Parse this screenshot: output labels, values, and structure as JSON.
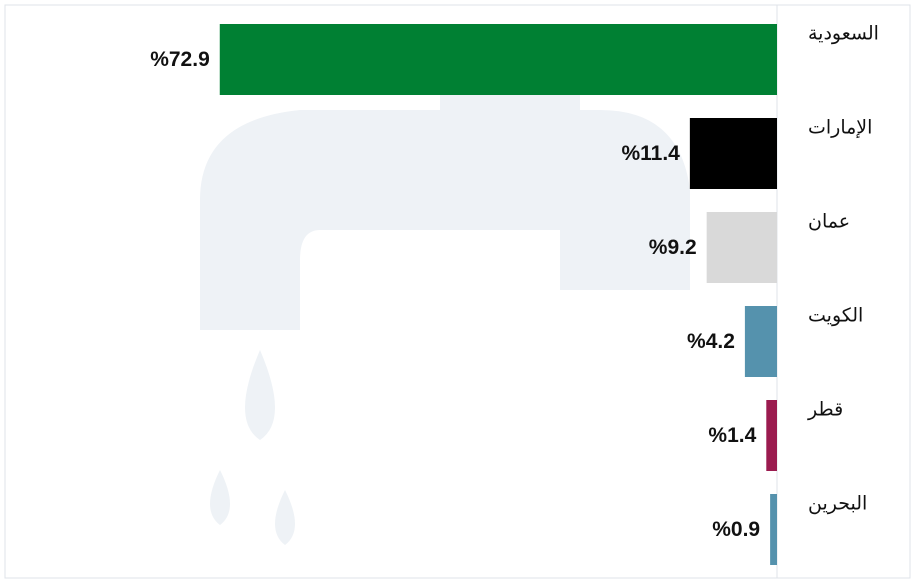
{
  "chart_data": {
    "type": "bar",
    "orientation": "horizontal",
    "categories": [
      "السعودية",
      "الإمارات",
      "عمان",
      "الكويت",
      "قطر",
      "البحرين"
    ],
    "values": [
      72.9,
      11.4,
      9.2,
      4.2,
      1.4,
      0.9
    ],
    "value_labels": [
      "%72.9",
      "%11.4",
      "%9.2",
      "%4.2",
      "%1.4",
      "%0.9"
    ],
    "colors": [
      "#008033",
      "#000000",
      "#d9d9d9",
      "#5592ad",
      "#9b1b4f",
      "#5592ad"
    ],
    "xlim": [
      0,
      73
    ]
  }
}
